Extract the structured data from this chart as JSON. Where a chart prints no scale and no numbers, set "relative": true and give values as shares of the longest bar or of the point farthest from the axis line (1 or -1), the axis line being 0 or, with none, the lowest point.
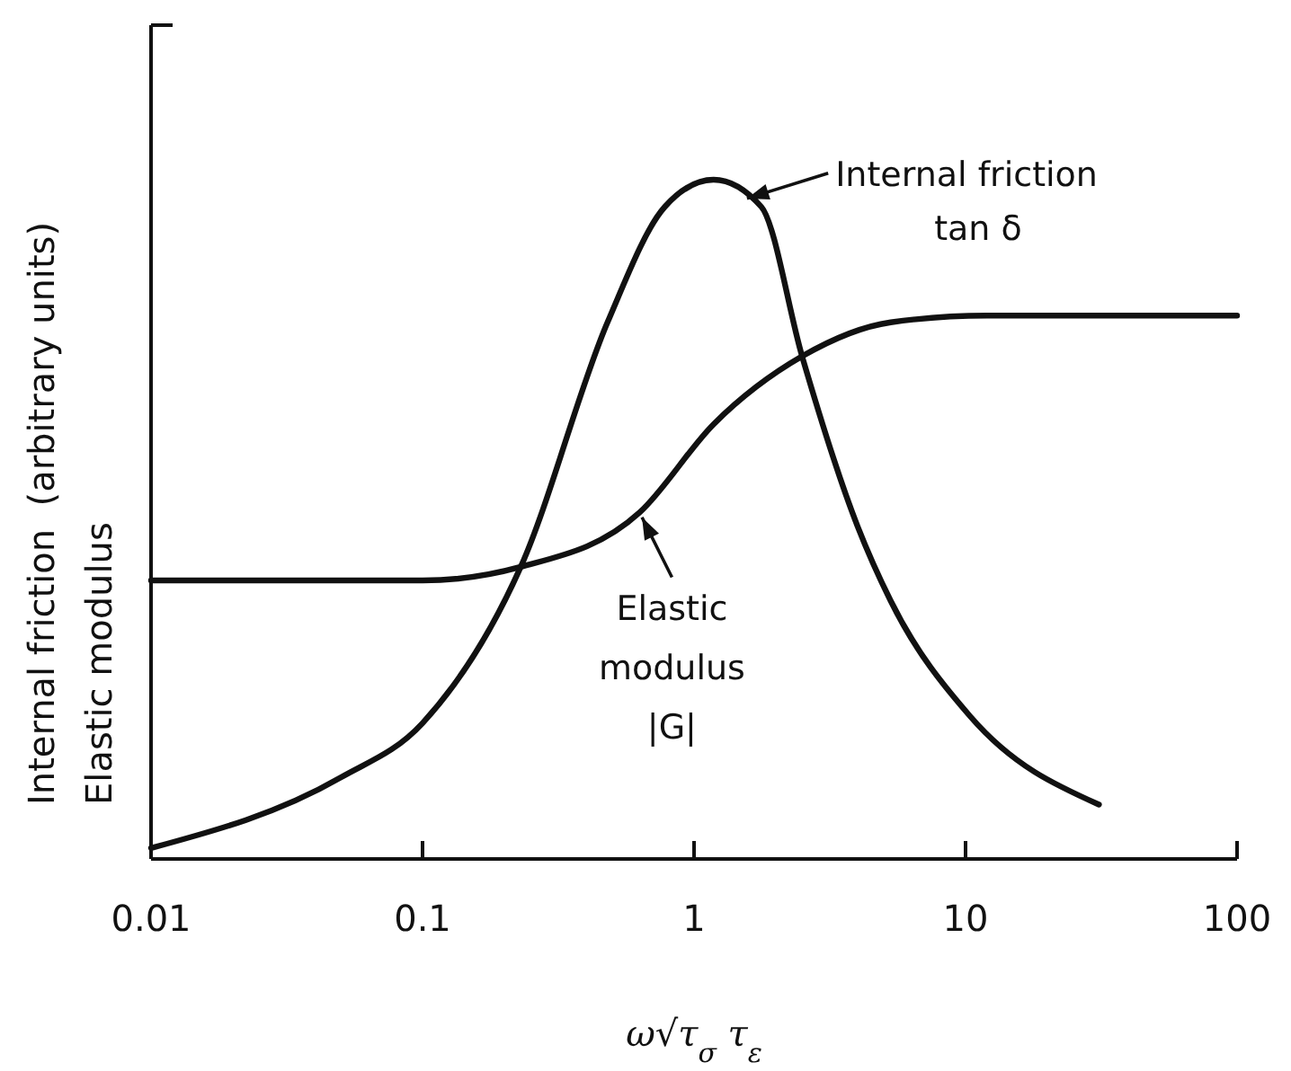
{
  "chart_data": {
    "type": "line",
    "relative": true,
    "log": "x",
    "xlabel": "ω√τ$_{σ}$ τ$_{ε}$",
    "ylabel": "Internal friction  (arbitrary units)\nElastic modulus",
    "xlim": [
      0.01,
      100
    ],
    "xticks": [
      0.01,
      0.1,
      1,
      10,
      100
    ],
    "marker": "none",
    "line_style": "solid",
    "grid": false,
    "series": [
      {
        "color": "#111111",
        "x": [
          0.01,
          0.05,
          0.1,
          0.23,
          0.48,
          0.78,
          1.18,
          1.77,
          2.5,
          4.0,
          5.3,
          10.4,
          31
        ],
        "values": [
          0.016,
          0.12,
          0.2,
          0.43,
          0.79,
          0.96,
          1.0,
          0.96,
          0.74,
          0.49,
          0.38,
          0.21,
          0.08
        ]
      },
      {
        "color": "#111111",
        "x": [
          0.01,
          0.1,
          0.23,
          0.63,
          1.18,
          2.5,
          5.3,
          12,
          100
        ],
        "values": [
          0.41,
          0.41,
          0.43,
          0.51,
          0.64,
          0.74,
          0.79,
          0.8,
          0.8
        ]
      }
    ],
    "annotations": [
      {
        "text": "Internal friction\ntan δ",
        "x": 1.5,
        "y": 0.97
      },
      {
        "text": "Elastic\nmodulus\n|G|",
        "x": 0.63,
        "y": 0.51
      }
    ]
  }
}
